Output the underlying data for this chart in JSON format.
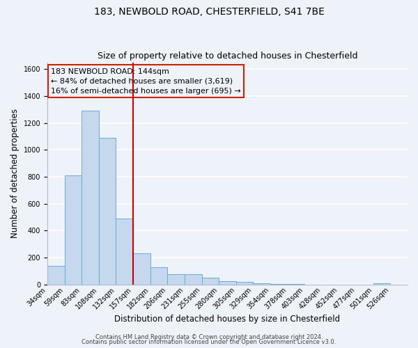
{
  "title1": "183, NEWBOLD ROAD, CHESTERFIELD, S41 7BE",
  "title2": "Size of property relative to detached houses in Chesterfield",
  "xlabel": "Distribution of detached houses by size in Chesterfield",
  "ylabel": "Number of detached properties",
  "bin_labels": [
    "34sqm",
    "59sqm",
    "83sqm",
    "108sqm",
    "132sqm",
    "157sqm",
    "182sqm",
    "206sqm",
    "231sqm",
    "255sqm",
    "280sqm",
    "305sqm",
    "329sqm",
    "354sqm",
    "378sqm",
    "403sqm",
    "428sqm",
    "452sqm",
    "477sqm",
    "501sqm",
    "526sqm"
  ],
  "bar_heights": [
    140,
    810,
    1290,
    1090,
    490,
    230,
    130,
    75,
    75,
    48,
    25,
    18,
    10,
    5,
    2,
    0,
    0,
    0,
    0,
    10,
    0
  ],
  "bar_color": "#c5d8ed",
  "bar_edge_color": "#6aaad4",
  "vline_x": 5,
  "vline_color": "#cc0000",
  "annotation_line1": "183 NEWBOLD ROAD: 144sqm",
  "annotation_line2": "← 84% of detached houses are smaller (3,619)",
  "annotation_line3": "16% of semi-detached houses are larger (695) →",
  "annotation_box_color": "#cc2200",
  "ylim": [
    0,
    1650
  ],
  "yticks": [
    0,
    200,
    400,
    600,
    800,
    1000,
    1200,
    1400,
    1600
  ],
  "footer_line1": "Contains HM Land Registry data © Crown copyright and database right 2024.",
  "footer_line2": "Contains public sector information licensed under the Open Government Licence v3.0.",
  "bg_color": "#eef2f9",
  "grid_color": "#ffffff",
  "title_fontsize": 10,
  "subtitle_fontsize": 9,
  "axis_label_fontsize": 8.5,
  "tick_fontsize": 7,
  "annotation_fontsize": 8,
  "footer_fontsize": 6
}
